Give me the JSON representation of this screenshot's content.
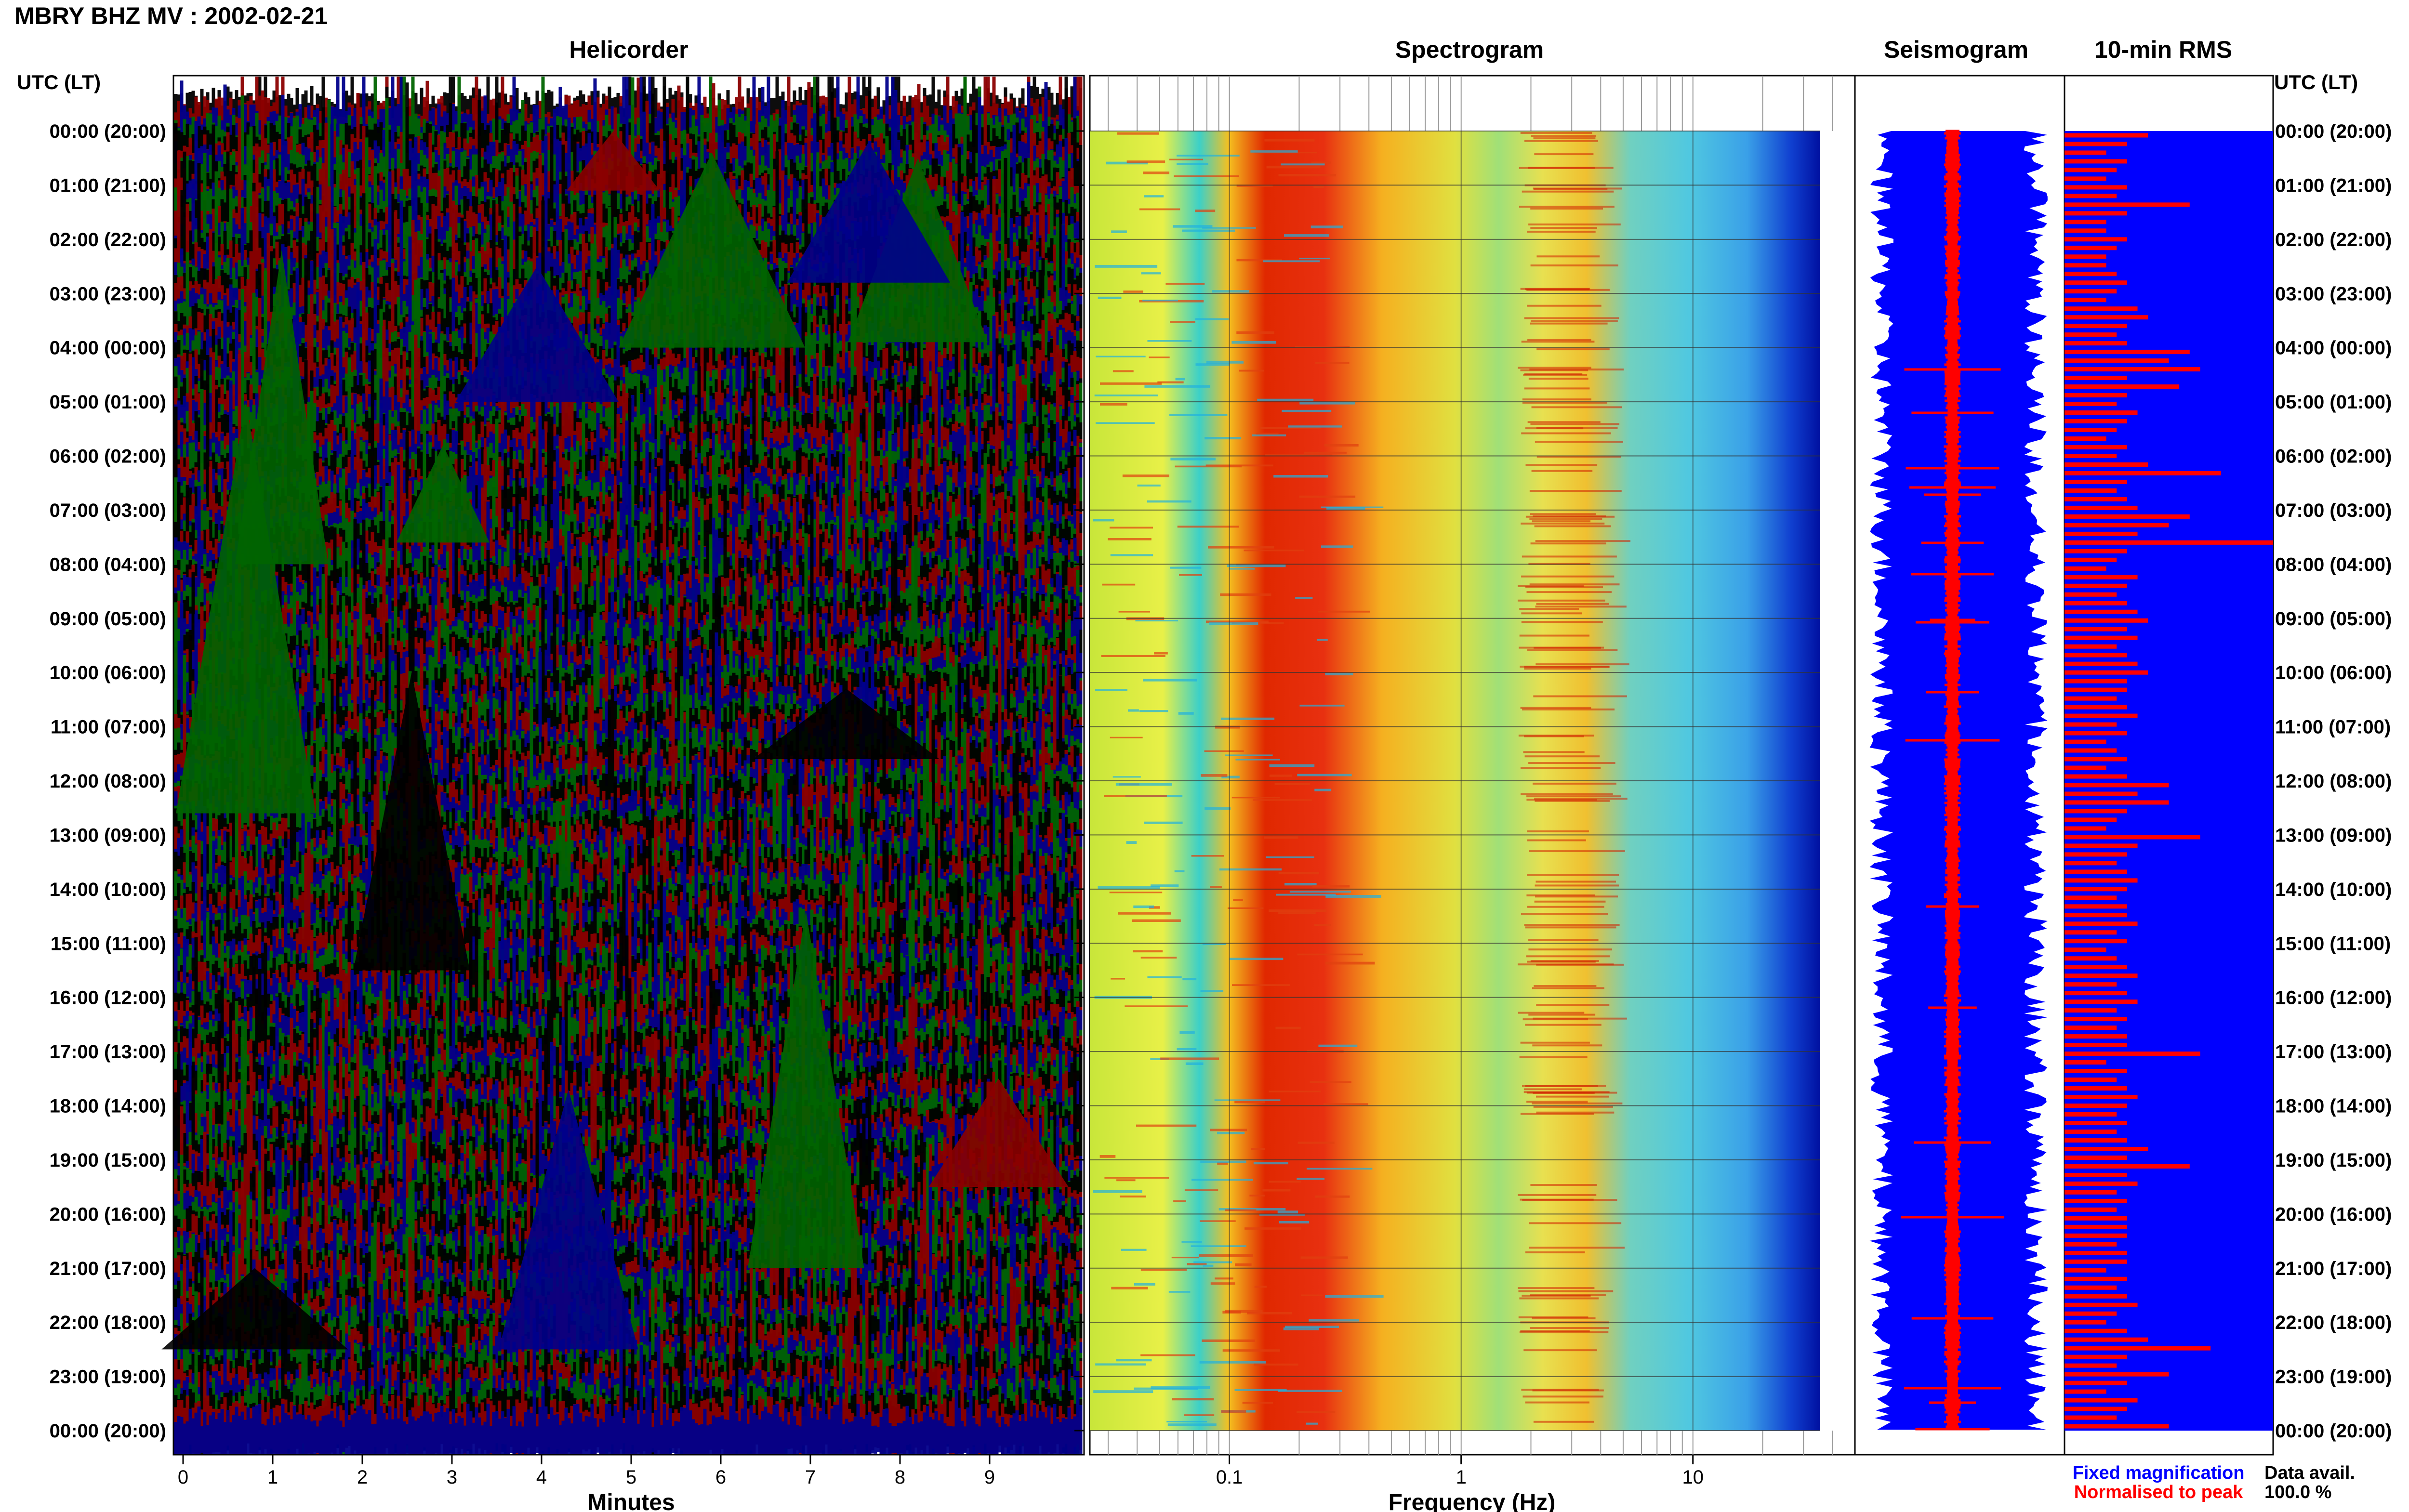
{
  "header": {
    "title": "MBRY BHZ MV : 2002-02-21"
  },
  "panels": {
    "helicorder_title": "Helicorder",
    "spectrogram_title": "Spectrogram",
    "seismogram_title": "Seismogram",
    "rms_title": "10-min RMS"
  },
  "axis_labels": {
    "time_left": "UTC (LT)",
    "time_right": "UTC (LT)",
    "minutes": "Minutes",
    "frequency": "Frequency (Hz)"
  },
  "legend": {
    "fixed": "Fixed magnification",
    "normalised": "Normalised to peak",
    "fixed_color": "#0000ff",
    "normalised_color": "#ff0000"
  },
  "data_avail": {
    "label": "Data avail.",
    "value": "100.0 %"
  },
  "colors": {
    "trace_colors": [
      "#000000",
      "#8b0000",
      "#00008b",
      "#006400"
    ],
    "seismogram_fill": "#0000ff",
    "seismogram_trace": "#ff0000",
    "rms_bar": "#ff0000",
    "rms_background": "#0000ff"
  },
  "chart_data": [
    {
      "type": "line",
      "name": "helicorder",
      "xlabel": "Minutes",
      "xticks": [
        "0",
        "1",
        "2",
        "3",
        "4",
        "5",
        "6",
        "7",
        "8",
        "9"
      ],
      "xlim": [
        0,
        10
      ],
      "time_ticks": [
        "00:00 (20:00)",
        "01:00 (21:00)",
        "02:00 (22:00)",
        "03:00 (23:00)",
        "04:00 (00:00)",
        "05:00 (01:00)",
        "06:00 (02:00)",
        "07:00 (03:00)",
        "08:00 (04:00)",
        "09:00 (05:00)",
        "10:00 (06:00)",
        "11:00 (07:00)",
        "12:00 (08:00)",
        "13:00 (09:00)",
        "14:00 (10:00)",
        "15:00 (11:00)",
        "16:00 (12:00)",
        "17:00 (13:00)",
        "18:00 (14:00)",
        "19:00 (15:00)",
        "20:00 (16:00)",
        "21:00 (17:00)",
        "22:00 (18:00)",
        "23:00 (19:00)",
        "00:00 (20:00)"
      ]
    },
    {
      "type": "heatmap",
      "name": "spectrogram",
      "xlabel": "Frequency (Hz)",
      "xscale": "log",
      "xticks": [
        "0.1",
        "1",
        "10"
      ],
      "xlim": [
        0.025,
        50
      ],
      "peak_band_hz": [
        0.15,
        0.5
      ],
      "secondary_band_hz": [
        2.5,
        4.5
      ]
    },
    {
      "type": "bar",
      "name": "10-min RMS",
      "rows_per_hour": 6,
      "values": [
        0.4,
        0.3,
        0.2,
        0.3,
        0.25,
        0.2,
        0.3,
        0.25,
        0.6,
        0.3,
        0.2,
        0.2,
        0.3,
        0.25,
        0.2,
        0.2,
        0.25,
        0.3,
        0.25,
        0.2,
        0.35,
        0.4,
        0.3,
        0.25,
        0.3,
        0.6,
        0.5,
        0.65,
        0.3,
        0.55,
        0.3,
        0.25,
        0.35,
        0.3,
        0.25,
        0.2,
        0.3,
        0.25,
        0.4,
        0.75,
        0.3,
        0.25,
        0.3,
        0.35,
        0.6,
        0.5,
        0.35,
        1.0,
        0.3,
        0.25,
        0.2,
        0.35,
        0.3,
        0.25,
        0.3,
        0.35,
        0.4,
        0.3,
        0.35,
        0.25,
        0.3,
        0.35,
        0.4,
        0.3,
        0.3,
        0.25,
        0.3,
        0.35,
        0.25,
        0.3,
        0.2,
        0.25,
        0.3,
        0.2,
        0.3,
        0.5,
        0.35,
        0.5,
        0.3,
        0.25,
        0.2,
        0.65,
        0.35,
        0.3,
        0.25,
        0.3,
        0.35,
        0.3,
        0.25,
        0.3,
        0.3,
        0.35,
        0.25,
        0.3,
        0.2,
        0.25,
        0.3,
        0.35,
        0.25,
        0.3,
        0.35,
        0.25,
        0.3,
        0.25,
        0.3,
        0.3,
        0.65,
        0.2,
        0.3,
        0.25,
        0.3,
        0.35,
        0.3,
        0.25,
        0.3,
        0.25,
        0.3,
        0.4,
        0.3,
        0.6,
        0.3,
        0.35,
        0.25,
        0.3,
        0.25,
        0.3,
        0.3,
        0.3,
        0.25,
        0.3,
        0.3,
        0.2,
        0.3,
        0.25,
        0.3,
        0.35,
        0.25,
        0.2,
        0.3,
        0.4,
        0.7,
        0.3,
        0.25,
        0.5,
        0.3,
        0.2,
        0.35,
        0.3,
        0.25,
        0.5
      ]
    }
  ]
}
